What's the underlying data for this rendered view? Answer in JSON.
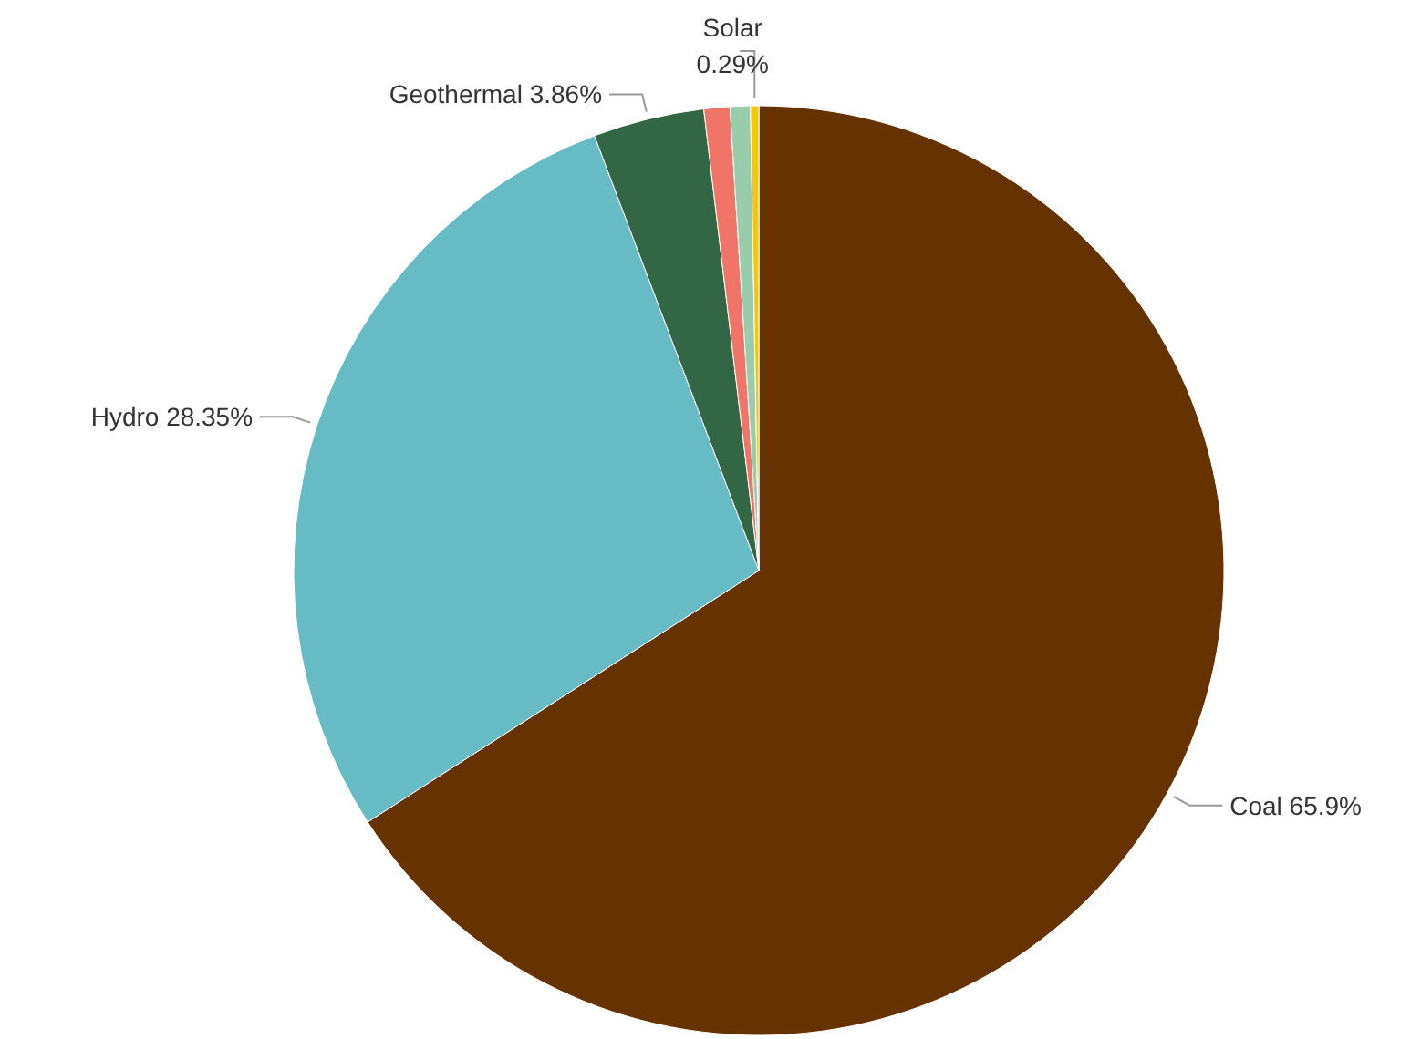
{
  "chart_data": {
    "type": "pie",
    "categories": [
      "Coal",
      "Hydro",
      "Geothermal",
      null,
      null,
      "Solar"
    ],
    "values": [
      65.9,
      28.35,
      3.86,
      0.9,
      0.7,
      0.29
    ],
    "colors": [
      "#663300",
      "#66bbc4",
      "#336644",
      "#f07468",
      "#99ccaa",
      "#f2c80f"
    ],
    "value_labels": [
      "65.9%",
      "28.35%",
      "3.86%",
      null,
      null,
      "0.29%"
    ]
  }
}
